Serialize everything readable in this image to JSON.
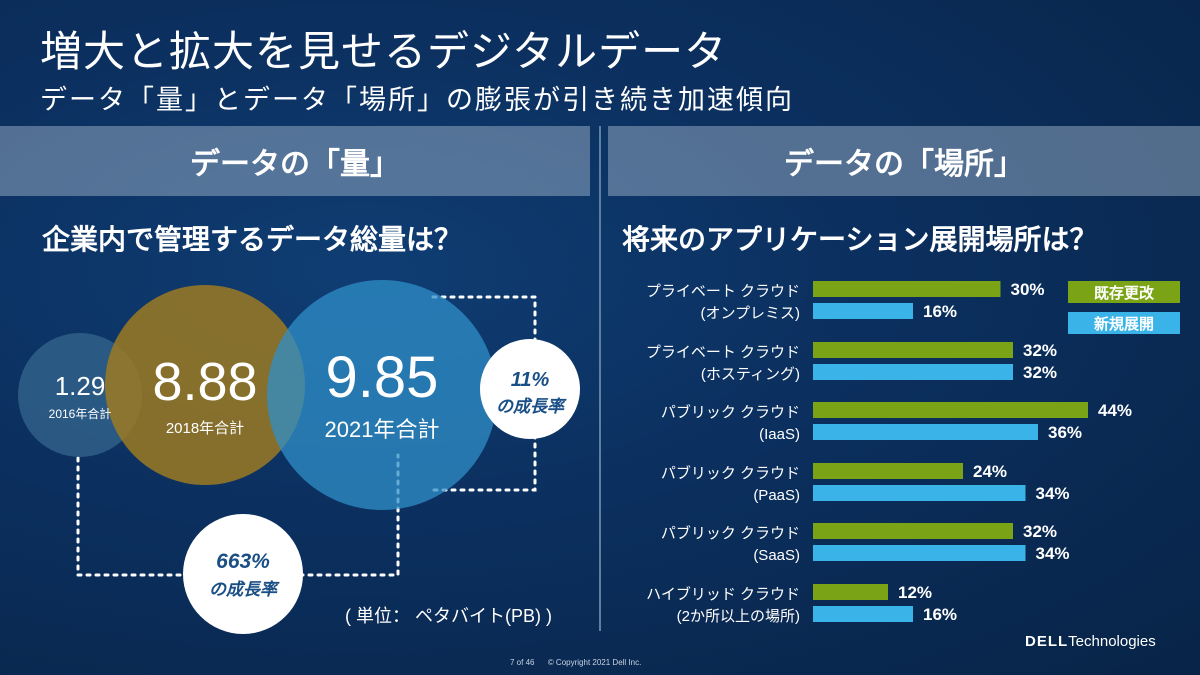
{
  "slide": {
    "title": "増大と拡大を見せるデジタルデータ",
    "subtitle": "データ「量」とデータ「場所」の膨張が引き続き加速傾向"
  },
  "left_panel": {
    "header": "データの「量」",
    "question": "企業内で管理するデータ総量は？",
    "unit": "( 単位： ペタバイト(PB) )",
    "growth_small": {
      "value": "11%",
      "label": "の成長率"
    },
    "growth_large": {
      "value": "663%",
      "label": "の成長率"
    }
  },
  "right_panel": {
    "header": "データの「場所」",
    "question": "将来のアプリケーション展開場所は？"
  },
  "footer": {
    "page": "7 of 46",
    "copyright": "© Copyright 2021 Dell Inc.",
    "logo_main": "DELL",
    "logo_sub": "Technologies"
  },
  "colors": {
    "green": "#7aa316",
    "blue": "#3ab3e8",
    "circle_2016": "#2e5d87",
    "circle_2018": "#9c7a22",
    "circle_2021": "#2f8fc8"
  },
  "chart_data": [
    {
      "type": "bubble",
      "series": [
        {
          "label": "2016年合計",
          "value": "1.29"
        },
        {
          "label": "2018年合計",
          "value": "8.88"
        },
        {
          "label": "2021年合計",
          "value": "9.85"
        }
      ]
    },
    {
      "type": "bar",
      "orientation": "horizontal",
      "xlim": [
        0,
        50
      ],
      "legend": [
        "既存更改",
        "新規展開"
      ],
      "categories": [
        {
          "line1": "プライベート クラウド",
          "line2": "(オンプレミス)"
        },
        {
          "line1": "プライベート クラウド",
          "line2": "(ホスティング)"
        },
        {
          "line1": "パブリック クラウド",
          "line2": "(IaaS)"
        },
        {
          "line1": "パブリック クラウド",
          "line2": "(PaaS)"
        },
        {
          "line1": "パブリック クラウド",
          "line2": "(SaaS)"
        },
        {
          "line1": "ハイブリッド クラウド",
          "line2": "(2か所以上の場所)"
        }
      ],
      "series": [
        {
          "name": "既存更改",
          "values": [
            30,
            32,
            44,
            24,
            32,
            12
          ]
        },
        {
          "name": "新規展開",
          "values": [
            16,
            32,
            36,
            34,
            34,
            16
          ]
        }
      ]
    }
  ]
}
